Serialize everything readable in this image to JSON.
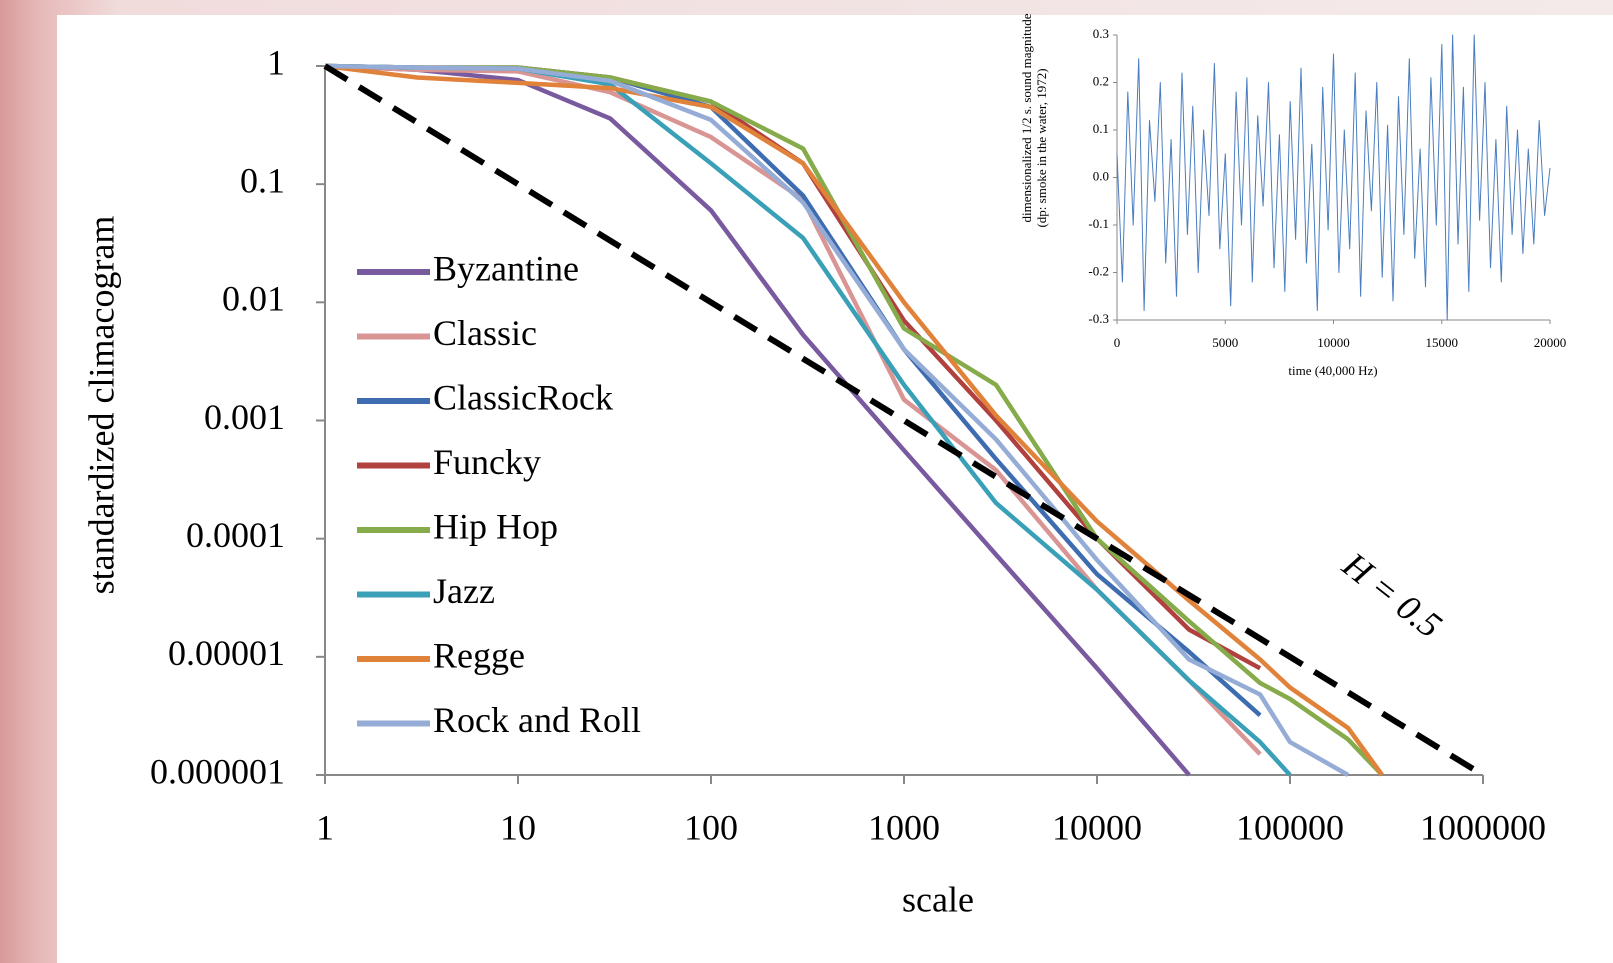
{
  "chart_data": [
    {
      "type": "line",
      "log_x": true,
      "log_y": true,
      "y_label": "standardized climacogram",
      "x_label": "scale",
      "x": [
        1,
        3,
        10,
        30,
        100,
        300,
        1000,
        3000,
        10000,
        30000,
        70000,
        100000,
        200000,
        300000
      ],
      "xlim": [
        1,
        1000000
      ],
      "xticks": [
        1,
        10,
        100,
        1000,
        10000,
        100000,
        1000000
      ],
      "ylim": [
        1e-06,
        1
      ],
      "yticks": [
        1,
        0.1,
        0.01,
        0.001,
        0.0001,
        1e-05,
        1e-06
      ],
      "legend": "left",
      "series": [
        {
          "name": "Byzantine",
          "color": "#7a5a9e",
          "values": [
            1,
            0.93,
            0.76,
            0.36,
            0.06,
            0.0053,
            0.00056,
            7.3e-05,
            8e-06,
            1e-06,
            null,
            null,
            null,
            null
          ]
        },
        {
          "name": "Classic",
          "color": "#d99594",
          "values": [
            1,
            0.93,
            0.9,
            0.6,
            0.25,
            0.074,
            0.0015,
            0.00038,
            3.7e-05,
            6.3e-06,
            1.5e-06,
            null,
            null,
            null
          ]
        },
        {
          "name": "ClassicRock",
          "color": "#3e6cb0",
          "values": [
            1,
            0.97,
            0.97,
            0.8,
            0.45,
            0.08,
            0.004,
            0.00047,
            5e-05,
            1.1e-05,
            3.2e-06,
            null,
            null,
            null
          ]
        },
        {
          "name": "Funcky",
          "color": "#b0413e",
          "values": [
            1,
            0.97,
            0.97,
            0.8,
            0.5,
            0.15,
            0.007,
            0.001,
            0.0001,
            1.7e-05,
            8e-06,
            null,
            null,
            null
          ]
        },
        {
          "name": "Hip Hop",
          "color": "#86ab4a",
          "values": [
            1,
            0.97,
            0.97,
            0.8,
            0.5,
            0.2,
            0.006,
            0.002,
            0.0001,
            2e-05,
            6e-06,
            4.4e-06,
            2e-06,
            1e-06
          ]
        },
        {
          "name": "Jazz",
          "color": "#3aa0b8",
          "values": [
            1,
            0.97,
            0.95,
            0.7,
            0.15,
            0.035,
            0.002,
            0.0002,
            3.7e-05,
            6.3e-06,
            1.9e-06,
            1e-06,
            null,
            null
          ]
        },
        {
          "name": "Regge",
          "color": "#e0823a",
          "values": [
            1,
            0.8,
            0.72,
            0.65,
            0.45,
            0.15,
            0.01,
            0.0011,
            0.00014,
            3e-05,
            9.5e-06,
            5.5e-06,
            2.5e-06,
            1e-06
          ]
        },
        {
          "name": "Rock and Roll",
          "color": "#95add6",
          "values": [
            1,
            0.97,
            0.95,
            0.75,
            0.35,
            0.07,
            0.004,
            0.00069,
            6.6e-05,
            9.5e-06,
            4.8e-06,
            1.9e-06,
            1e-06,
            null
          ]
        }
      ],
      "reference_line": {
        "x": [
          1,
          1000000
        ],
        "y": [
          1,
          1e-06
        ],
        "label": "H = 0.5"
      }
    },
    {
      "type": "line",
      "x_label": "time (40,000 Hz)",
      "y_label": [
        "dimensionalized 1/2 s. sound magnitude",
        "(dp: smoke in the water, 1972)"
      ],
      "x": [
        0,
        250,
        500,
        750,
        1000,
        1250,
        1500,
        1750,
        2000,
        2250,
        2500,
        2750,
        3000,
        3250,
        3500,
        3750,
        4000,
        4250,
        4500,
        4750,
        5000,
        5250,
        5500,
        5750,
        6000,
        6250,
        6500,
        6750,
        7000,
        7250,
        7500,
        7750,
        8000,
        8250,
        8500,
        8750,
        9000,
        9250,
        9500,
        9750,
        10000,
        10250,
        10500,
        10750,
        11000,
        11250,
        11500,
        11750,
        12000,
        12250,
        12500,
        12750,
        13000,
        13250,
        13500,
        13750,
        14000,
        14250,
        14500,
        14750,
        15000,
        15250,
        15500,
        15750,
        16000,
        16250,
        16500,
        16750,
        17000,
        17250,
        17500,
        17750,
        18000,
        18250,
        18500,
        18750,
        19000,
        19250,
        19500,
        19750,
        20000
      ],
      "xlim": [
        0,
        20000
      ],
      "xticks": [
        0,
        5000,
        10000,
        15000,
        20000
      ],
      "ylim": [
        -0.3,
        0.3
      ],
      "yticks": [
        0.3,
        0.2,
        0.1,
        {
          "value": 0,
          "label": "0.0"
        },
        -0.1,
        -0.2,
        -0.3
      ],
      "series": [
        {
          "color": "#4a7dbf",
          "values": [
            0.05,
            -0.22,
            0.18,
            -0.1,
            0.25,
            -0.28,
            0.12,
            -0.05,
            0.2,
            -0.18,
            0.08,
            -0.25,
            0.22,
            -0.12,
            0.15,
            -0.2,
            0.1,
            -0.08,
            0.24,
            -0.15,
            0.05,
            -0.27,
            0.18,
            -0.1,
            0.21,
            -0.22,
            0.13,
            -0.06,
            0.2,
            -0.19,
            0.09,
            -0.24,
            0.16,
            -0.13,
            0.23,
            -0.18,
            0.07,
            -0.28,
            0.19,
            -0.11,
            0.26,
            -0.2,
            0.1,
            -0.15,
            0.22,
            -0.25,
            0.14,
            -0.07,
            0.2,
            -0.21,
            0.11,
            -0.26,
            0.17,
            -0.12,
            0.25,
            -0.17,
            0.06,
            -0.23,
            0.21,
            -0.1,
            0.28,
            -0.3,
            0.3,
            -0.14,
            0.19,
            -0.24,
            0.3,
            -0.09,
            0.2,
            -0.19,
            0.08,
            -0.22,
            0.15,
            -0.12,
            0.1,
            -0.16,
            0.06,
            -0.14,
            0.12,
            -0.08,
            0.02
          ]
        }
      ]
    }
  ]
}
